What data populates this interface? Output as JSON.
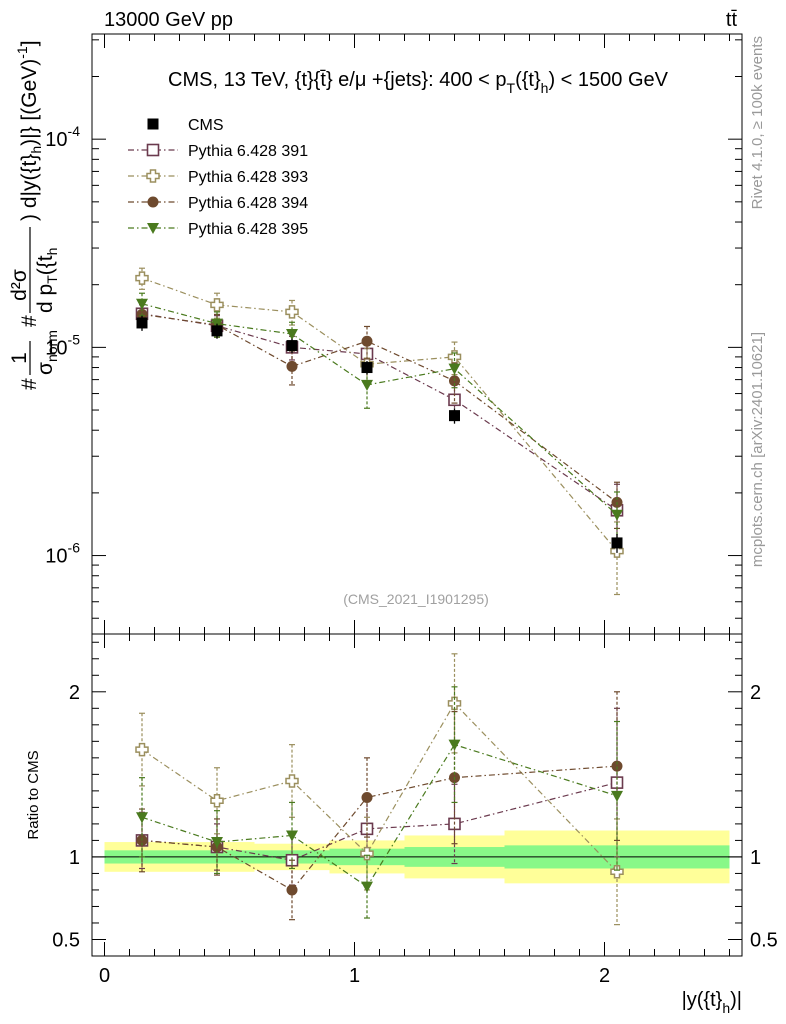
{
  "chart_data": {
    "type": "scatter",
    "header_left": "13000 GeV pp",
    "header_right": "tt̄",
    "title": "CMS, 13 TeV, {t}{t̄} e/μ +{jets}: 400 <  p_T({t}_h) < 1500 GeV",
    "title_parts": {
      "pre": "CMS, 13 TeV, {t}{",
      "tbar": "t̄",
      "mid": "} e/μ +{jets}: 400 <  p",
      "sub1": "T",
      "mid2": "({t}",
      "sub2": "h",
      "post": ") < 1500 GeV"
    },
    "ylabel": "#1/σ_norm #d²σ/d p_T({t_h) d|y({t}_h)|} [(GeV)^-1]",
    "ylabel_parts": {
      "hash": "#",
      "one": "1",
      "sigma": "σ",
      "norm": "norm",
      "d2sigma": "d²σ",
      "dpT": "d p",
      "T": "T",
      "th": "({t",
      "h": "h",
      "rest": ") d|y({t}",
      "h2": "h",
      "rest2": ")|} [(GeV)",
      "exp": "-1",
      "close": "]"
    },
    "xlabel": "|y({t}_h)|",
    "xlabel_parts": {
      "pre": "|y({t}",
      "sub": "h",
      "post": ")|"
    },
    "ratio_ylabel": "Ratio to CMS",
    "rivet_label": "Rivet 4.1.0, ≥ 100k events",
    "mcplots_label": "mcplots.cern.ch [arXiv:2401.10621]",
    "analysis_label": "(CMS_2021_I1901295)",
    "xlim": [
      -0.05,
      2.55
    ],
    "ylim": [
      4.2e-07,
      0.00032
    ],
    "ratio_ylim": [
      0.4,
      2.35
    ],
    "y_scale": "log",
    "x_ticks": [
      "0",
      "1",
      "2"
    ],
    "y_ticks": [
      {
        "value": 1e-06,
        "mant": "10",
        "exp": "-6"
      },
      {
        "value": 1e-05,
        "mant": "10",
        "exp": "-5"
      },
      {
        "value": 0.0001,
        "mant": "10",
        "exp": "-4"
      }
    ],
    "ratio_ticks": [
      "0.5",
      "1",
      "2"
    ],
    "ratio_tick_values": [
      0.5,
      1,
      2
    ],
    "bins": [
      [
        0.0,
        0.3
      ],
      [
        0.3,
        0.6
      ],
      [
        0.6,
        0.9
      ],
      [
        0.9,
        1.2
      ],
      [
        1.2,
        1.6
      ],
      [
        1.6,
        2.5
      ]
    ],
    "x": [
      0.15,
      0.45,
      0.75,
      1.05,
      1.4,
      2.05
    ],
    "data": {
      "name": "CMS",
      "values": [
        1.31e-05,
        1.2e-05,
        1.02e-05,
        8e-06,
        4.7e-06,
        1.15e-06
      ],
      "errors": [
        1.1e-06,
        1e-06,
        8e-07,
        6e-07,
        4e-07,
        1.2e-07
      ],
      "color": "#000000"
    },
    "band_inner": [
      0.04,
      0.04,
      0.04,
      0.05,
      0.06,
      0.07
    ],
    "band_outer": [
      0.09,
      0.09,
      0.08,
      0.1,
      0.13,
      0.16
    ],
    "band_inner_color": "#88f888",
    "band_outer_color": "#ffff99",
    "series": [
      {
        "name": "Pythia 6.428 391",
        "marker": "open-square",
        "color": "#6b3a4e",
        "values": [
          1.45e-05,
          1.27e-05,
          1e-05,
          9.3e-06,
          5.6e-06,
          1.65e-06
        ],
        "errors": [
          1.5e-06,
          1.5e-06,
          1.3e-06,
          1.3e-06,
          1e-06,
          5.5e-07
        ],
        "ratio": [
          1.1,
          1.06,
          0.98,
          1.17,
          1.2,
          1.45
        ],
        "ratio_errors": [
          0.17,
          0.14,
          0.15,
          0.18,
          0.24,
          0.45
        ]
      },
      {
        "name": "Pythia 6.428 393",
        "marker": "open-plus",
        "color": "#9b8f5e",
        "values": [
          2.15e-05,
          1.6e-05,
          1.48e-05,
          8.3e-06,
          9e-06,
          1.05e-06
        ],
        "errors": [
          2.5e-06,
          2.2e-06,
          2e-06,
          1.6e-06,
          1.6e-06,
          4e-07
        ],
        "ratio": [
          1.65,
          1.34,
          1.46,
          1.02,
          1.93,
          0.91
        ],
        "ratio_errors": [
          0.22,
          0.2,
          0.22,
          0.22,
          0.3,
          0.32
        ]
      },
      {
        "name": "Pythia 6.428 394",
        "marker": "filled-circle",
        "color": "#6e4a2e",
        "values": [
          1.44e-05,
          1.28e-05,
          8.1e-06,
          1.07e-05,
          6.9e-06,
          1.8e-06
        ],
        "errors": [
          1.8e-06,
          1.6e-06,
          1.5e-06,
          1.9e-06,
          1.5e-06,
          4.5e-07
        ],
        "ratio": [
          1.1,
          1.06,
          0.8,
          1.36,
          1.48,
          1.55
        ],
        "ratio_errors": [
          0.19,
          0.17,
          0.18,
          0.24,
          0.4,
          0.45
        ]
      },
      {
        "name": "Pythia 6.428 395",
        "marker": "filled-triangle-down",
        "color": "#4a7a1e",
        "values": [
          1.62e-05,
          1.3e-05,
          1.16e-05,
          6.6e-06,
          7.9e-06,
          1.57e-06
        ],
        "errors": [
          2e-06,
          1.8e-06,
          1.6e-06,
          1.5e-06,
          1.5e-06,
          4.5e-07
        ],
        "ratio": [
          1.24,
          1.09,
          1.13,
          0.82,
          1.68,
          1.37
        ],
        "ratio_errors": [
          0.24,
          0.19,
          0.2,
          0.19,
          0.35,
          0.45
        ]
      }
    ]
  }
}
